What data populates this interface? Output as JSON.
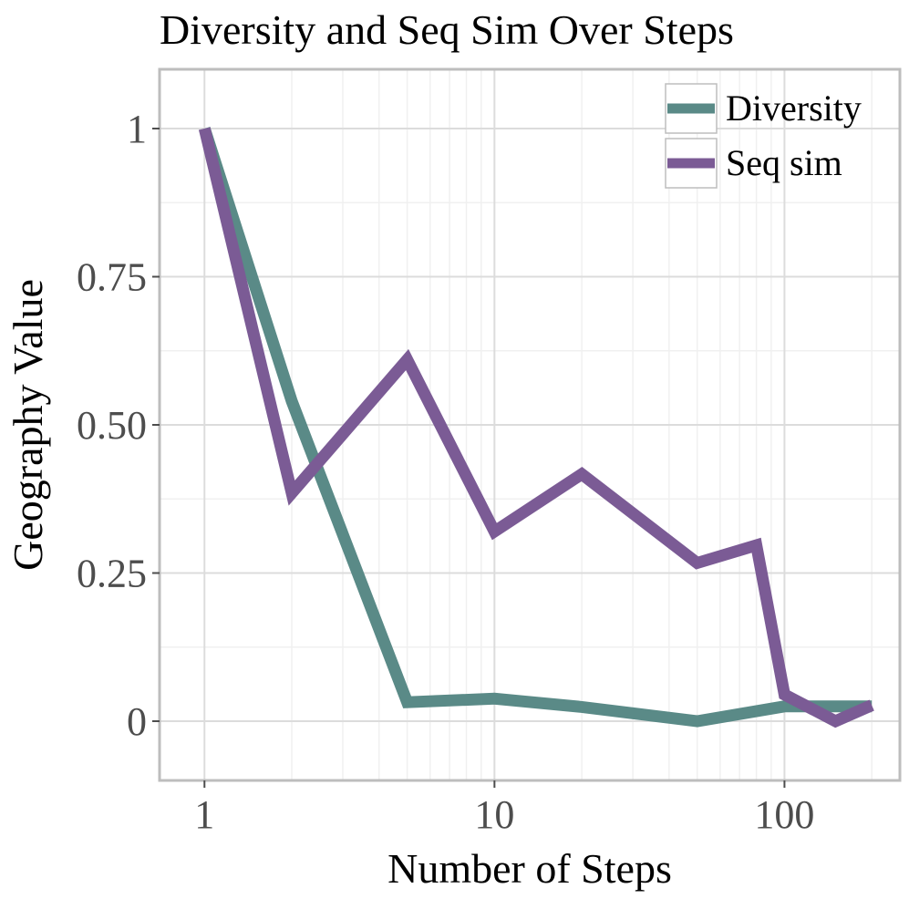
{
  "chart_data": {
    "type": "line",
    "title": "Diversity and Seq Sim Over Steps",
    "xlabel": "Number of Steps",
    "ylabel": "Geography Value",
    "x_scale": "log10",
    "xlim": [
      0.7,
      250
    ],
    "ylim": [
      -0.1,
      1.1
    ],
    "xticks": [
      1,
      10,
      100
    ],
    "xtick_labels": [
      "1",
      "10",
      "100"
    ],
    "yticks": [
      0,
      0.25,
      0.5,
      0.75,
      1
    ],
    "ytick_labels": [
      "0",
      "0.25",
      "0.50",
      "0.75",
      "1"
    ],
    "grid": true,
    "legend_position": "top-right",
    "series": [
      {
        "name": "Diversity",
        "color": "#5a8a87",
        "x": [
          1,
          2,
          5,
          10,
          20,
          50,
          100,
          150,
          200
        ],
        "y": [
          1.0,
          0.54,
          0.032,
          0.038,
          0.024,
          0.0,
          0.025,
          0.025,
          0.025
        ]
      },
      {
        "name": "Seq sim",
        "color": "#7b5b95",
        "x": [
          1,
          2,
          5,
          10,
          20,
          50,
          80,
          100,
          150,
          200
        ],
        "y": [
          1.0,
          0.385,
          0.61,
          0.32,
          0.417,
          0.267,
          0.297,
          0.045,
          0.0,
          0.027
        ]
      }
    ]
  }
}
